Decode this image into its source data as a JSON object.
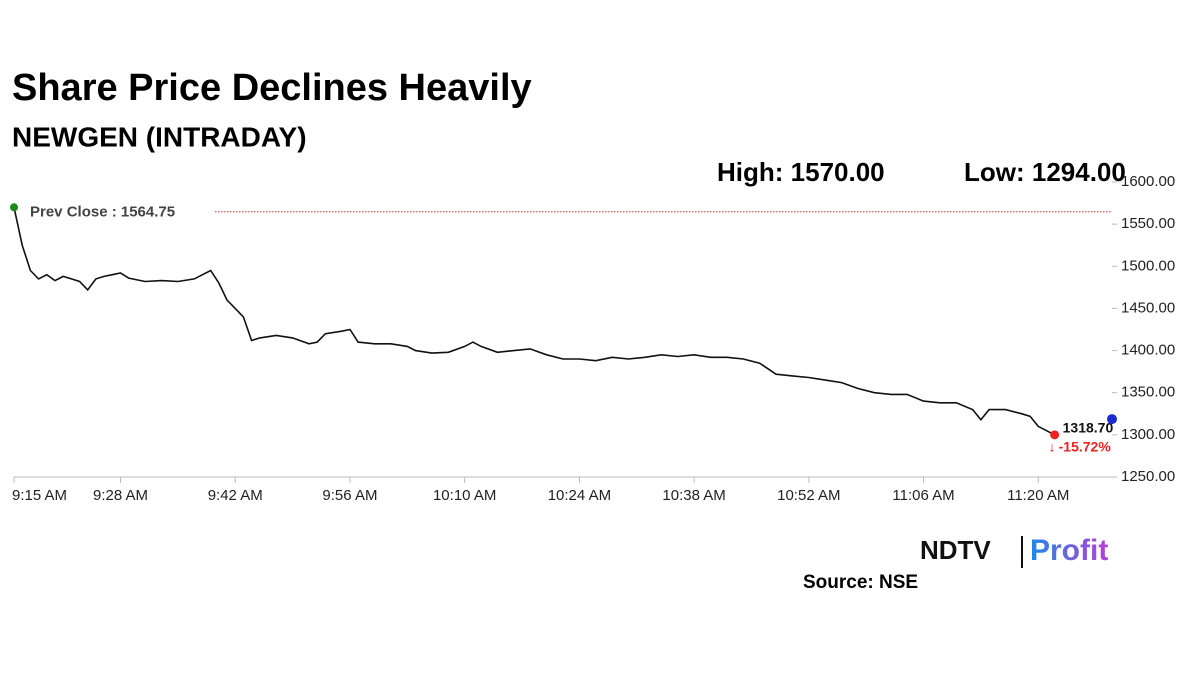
{
  "chart_data": {
    "type": "line",
    "title": "Share Price Declines Heavily",
    "subtitle": "NEWGEN (INTRADAY)",
    "high_label": "High: 1570.00",
    "low_label": "Low: 1294.00",
    "prev_close": 1564.75,
    "prev_close_label": "Prev Close : 1564.75",
    "last_price": 1318.7,
    "last_label": "1318.70",
    "change_label": "-15.72%",
    "source": "Source: NSE",
    "logo": [
      "NDTV",
      "Profit"
    ],
    "x": [
      "9:15 AM",
      "9:16 AM",
      "9:17 AM",
      "9:18 AM",
      "9:19 AM",
      "9:20 AM",
      "9:21 AM",
      "9:22 AM",
      "9:23 AM",
      "9:24 AM",
      "9:25 AM",
      "9:26 AM",
      "9:27 AM",
      "9:28 AM",
      "9:29 AM",
      "9:31 AM",
      "9:33 AM",
      "9:35 AM",
      "9:37 AM",
      "9:38 AM",
      "9:39 AM",
      "9:40 AM",
      "9:41 AM",
      "9:42 AM",
      "9:43 AM",
      "9:44 AM",
      "9:45 AM",
      "9:47 AM",
      "9:49 AM",
      "9:51 AM",
      "9:52 AM",
      "9:53 AM",
      "9:55 AM",
      "9:56 AM",
      "9:57 AM",
      "9:59 AM",
      "10:01 AM",
      "10:03 AM",
      "10:04 AM",
      "10:06 AM",
      "10:08 AM",
      "10:10 AM",
      "10:11 AM",
      "10:12 AM",
      "10:14 AM",
      "10:16 AM",
      "10:18 AM",
      "10:20 AM",
      "10:22 AM",
      "10:24 AM",
      "10:26 AM",
      "10:28 AM",
      "10:30 AM",
      "10:32 AM",
      "10:34 AM",
      "10:36 AM",
      "10:38 AM",
      "10:40 AM",
      "10:42 AM",
      "10:44 AM",
      "10:46 AM",
      "10:48 AM",
      "10:50 AM",
      "10:52 AM",
      "10:54 AM",
      "10:56 AM",
      "10:58 AM",
      "11:00 AM",
      "11:02 AM",
      "11:04 AM",
      "11:06 AM",
      "11:08 AM",
      "11:10 AM",
      "11:12 AM",
      "11:13 AM",
      "11:14 AM",
      "11:16 AM",
      "11:18 AM",
      "11:19 AM",
      "11:20 AM",
      "11:21 AM",
      "11:22 AM"
    ],
    "series": [
      {
        "name": "NEWGEN",
        "color": "#111111",
        "values": [
          1570,
          1525,
          1495,
          1485,
          1490,
          1483,
          1488,
          1485,
          1482,
          1472,
          1485,
          1488,
          1490,
          1492,
          1486,
          1482,
          1483,
          1482,
          1485,
          1490,
          1495,
          1480,
          1460,
          1450,
          1440,
          1412,
          1415,
          1418,
          1415,
          1408,
          1410,
          1420,
          1423,
          1425,
          1410,
          1408,
          1408,
          1405,
          1400,
          1397,
          1398,
          1405,
          1410,
          1405,
          1398,
          1400,
          1402,
          1395,
          1390,
          1390,
          1388,
          1392,
          1390,
          1392,
          1395,
          1393,
          1395,
          1392,
          1392,
          1390,
          1385,
          1372,
          1370,
          1368,
          1365,
          1362,
          1355,
          1350,
          1348,
          1348,
          1340,
          1338,
          1338,
          1330,
          1318,
          1330,
          1330,
          1325,
          1322,
          1310,
          1305,
          1300
        ]
      }
    ],
    "xlim": [
      "9:15 AM",
      "11:29 AM"
    ],
    "xticks": [
      "9:15 AM",
      "9:28 AM",
      "9:42 AM",
      "9:56 AM",
      "10:10 AM",
      "10:24 AM",
      "10:38 AM",
      "10:52 AM",
      "11:06 AM",
      "11:20 AM"
    ],
    "ylim": [
      1250,
      1600
    ],
    "yticks": [
      {
        "value": 1250,
        "label": "1250.00"
      },
      {
        "value": 1300,
        "label": "1300.00"
      },
      {
        "value": 1350,
        "label": "1350.00"
      },
      {
        "value": 1400,
        "label": "1400.00"
      },
      {
        "value": 1450,
        "label": "1450.00"
      },
      {
        "value": 1500,
        "label": "1500.00"
      },
      {
        "value": 1550,
        "label": "1550.00"
      },
      {
        "value": 1600,
        "label": "1600.00"
      }
    ],
    "grid": false
  }
}
